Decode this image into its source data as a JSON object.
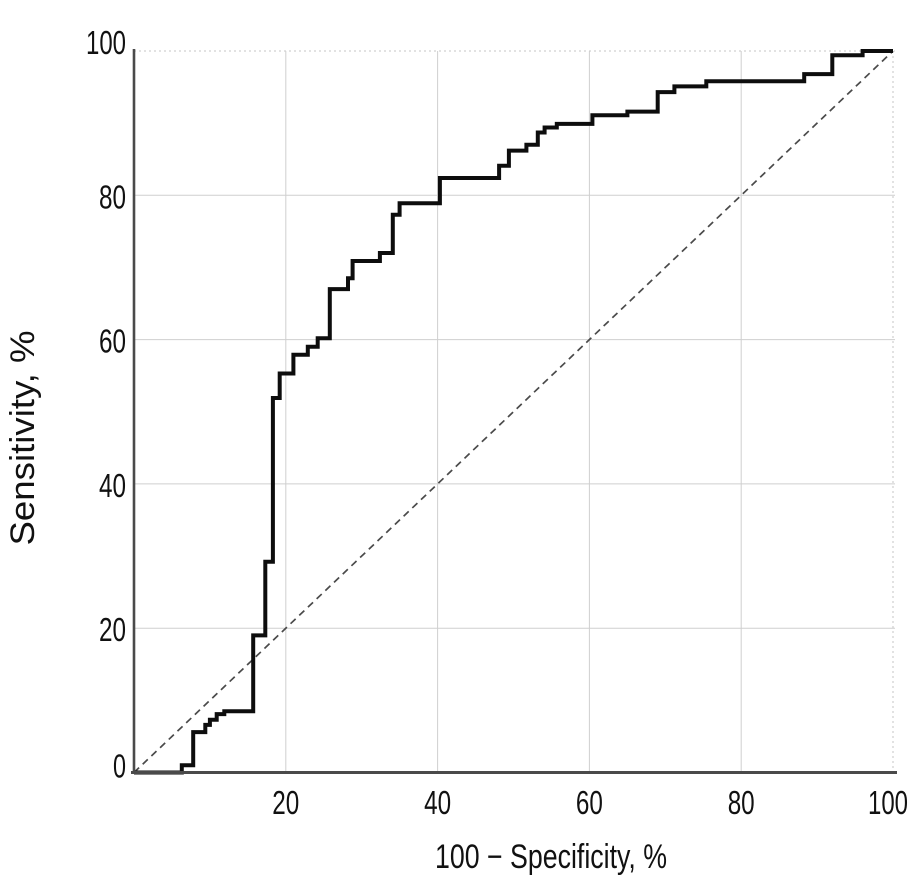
{
  "chart_data": {
    "type": "line",
    "title": "",
    "xlabel": "100 − Specificity, %",
    "ylabel": "Sensitivity, %",
    "xlim": [
      0,
      100
    ],
    "ylim": [
      0,
      100
    ],
    "x_ticks": [
      20,
      40,
      60,
      80,
      100
    ],
    "y_ticks": [
      0,
      20,
      40,
      60,
      80,
      100
    ],
    "grid": true,
    "legend": "none",
    "colors": {
      "curve": "#0d0d0d",
      "reference": "#4a4a4a",
      "axis": "#4a4a4a",
      "grid": "#cfcfcf",
      "grid_boundary": "#c6c6c6",
      "text": "#111111"
    },
    "series": [
      {
        "name": "roc_curve",
        "style": "solid",
        "width": 4,
        "points": [
          [
            0,
            0
          ],
          [
            6.3,
            0
          ],
          [
            6.3,
            1
          ],
          [
            7.8,
            1
          ],
          [
            7.8,
            5.6
          ],
          [
            9.4,
            5.6
          ],
          [
            9.4,
            6.6
          ],
          [
            10,
            6.6
          ],
          [
            10,
            7.3
          ],
          [
            10.9,
            7.3
          ],
          [
            10.9,
            8.1
          ],
          [
            11.9,
            8.1
          ],
          [
            11.9,
            8.5
          ],
          [
            15.7,
            8.5
          ],
          [
            15.7,
            19
          ],
          [
            17.3,
            19
          ],
          [
            17.3,
            29.2
          ],
          [
            18.3,
            29.2
          ],
          [
            18.3,
            51.9
          ],
          [
            19.2,
            51.9
          ],
          [
            19.2,
            55.3
          ],
          [
            21,
            55.3
          ],
          [
            21,
            57.9
          ],
          [
            22.9,
            57.9
          ],
          [
            22.9,
            59
          ],
          [
            24.2,
            59
          ],
          [
            24.2,
            60.2
          ],
          [
            25.8,
            60.2
          ],
          [
            25.8,
            67
          ],
          [
            28.2,
            67
          ],
          [
            28.2,
            68.5
          ],
          [
            28.8,
            68.5
          ],
          [
            28.8,
            70.9
          ],
          [
            32.4,
            70.9
          ],
          [
            32.4,
            72
          ],
          [
            34.1,
            72
          ],
          [
            34.1,
            77.3
          ],
          [
            35,
            77.3
          ],
          [
            35,
            78.9
          ],
          [
            40.3,
            78.9
          ],
          [
            40.3,
            82.4
          ],
          [
            48.1,
            82.4
          ],
          [
            48.1,
            84.1
          ],
          [
            49.4,
            84.1
          ],
          [
            49.4,
            86.2
          ],
          [
            51.7,
            86.2
          ],
          [
            51.7,
            87
          ],
          [
            53.2,
            87
          ],
          [
            53.2,
            88.7
          ],
          [
            54.1,
            88.7
          ],
          [
            54.1,
            89.4
          ],
          [
            55.7,
            89.4
          ],
          [
            55.7,
            89.9
          ],
          [
            60.4,
            89.9
          ],
          [
            60.4,
            91.1
          ],
          [
            65,
            91.1
          ],
          [
            65,
            91.6
          ],
          [
            69,
            91.6
          ],
          [
            69,
            94.3
          ],
          [
            71.2,
            94.3
          ],
          [
            71.2,
            95.1
          ],
          [
            75.4,
            95.1
          ],
          [
            75.4,
            95.8
          ],
          [
            88.3,
            95.8
          ],
          [
            88.3,
            96.8
          ],
          [
            92,
            96.8
          ],
          [
            92,
            99.4
          ],
          [
            96,
            99.4
          ],
          [
            96,
            100
          ],
          [
            100,
            100
          ]
        ]
      },
      {
        "name": "reference_diagonal",
        "style": "dashed",
        "width": 1.7,
        "points": [
          [
            0,
            0
          ],
          [
            100,
            100
          ]
        ]
      }
    ]
  }
}
